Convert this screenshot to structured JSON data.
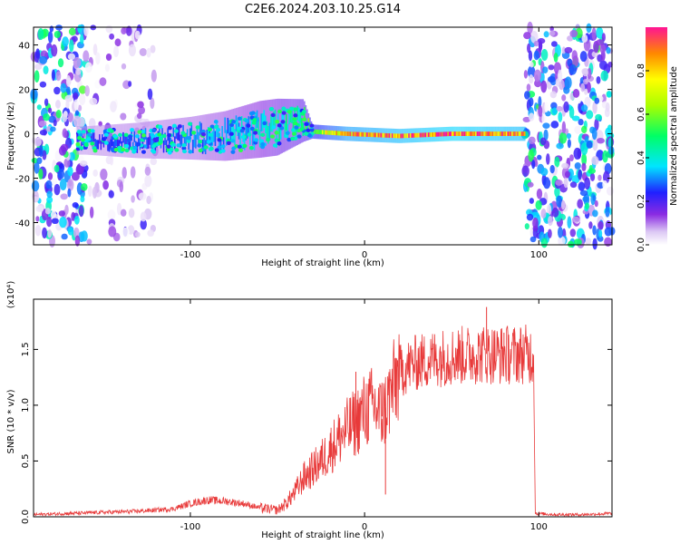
{
  "figure_title": "C2E6.2024.203.10.25.G14",
  "chart_data": [
    {
      "type": "heatmap",
      "title": "C2E6.2024.203.10.25.G14",
      "xlabel": "Height of straight line (km)",
      "ylabel": "Frequency (Hz)",
      "xlim": [
        -190,
        142
      ],
      "ylim": [
        -50,
        48
      ],
      "xticks": [
        -100,
        0,
        100
      ],
      "xtick_labels": [
        "-100",
        "0",
        "100"
      ],
      "yticks": [
        -40,
        -20,
        0,
        20,
        40
      ],
      "ytick_labels": [
        "-40",
        "-20",
        "0",
        "20",
        "40"
      ],
      "colorbar": {
        "label": "Normalized spectral amplitude",
        "range": [
          0,
          1
        ],
        "ticks": [
          0,
          0.2,
          0.4,
          0.6,
          0.8
        ],
        "tick_labels": [
          "0.0",
          "0.2",
          "0.4",
          "0.6",
          "0.8"
        ],
        "colormap": "rainbow"
      },
      "noise_regions": [
        {
          "x": [
            -190,
            -160
          ],
          "level": 0.3
        },
        {
          "x": [
            -160,
            -120
          ],
          "level": 0.12
        },
        {
          "x": [
            92,
            142
          ],
          "level": 0.3
        }
      ],
      "signal_ridge": [
        {
          "x": -160,
          "center": -3,
          "width": 4,
          "amp": 0.25
        },
        {
          "x": -130,
          "center": -3,
          "width": 5,
          "amp": 0.28
        },
        {
          "x": -100,
          "center": -2,
          "width": 6,
          "amp": 0.3
        },
        {
          "x": -80,
          "center": -1,
          "width": 7,
          "amp": 0.35
        },
        {
          "x": -60,
          "center": 2,
          "width": 8,
          "amp": 0.4
        },
        {
          "x": -50,
          "center": 3,
          "width": 8,
          "amp": 0.45
        },
        {
          "x": -35,
          "center": 6,
          "width": 6,
          "amp": 0.5
        },
        {
          "x": -30,
          "center": 1,
          "width": 2,
          "amp": 0.65
        },
        {
          "x": -10,
          "center": 0,
          "width": 2,
          "amp": 0.9
        },
        {
          "x": 20,
          "center": -1,
          "width": 2,
          "amp": 0.95
        },
        {
          "x": 50,
          "center": 0,
          "width": 2,
          "amp": 1.0
        },
        {
          "x": 92,
          "center": 0,
          "width": 2,
          "amp": 0.95
        }
      ]
    },
    {
      "type": "line",
      "xlabel": "Height of straight line (km)",
      "ylabel": "SNR (10 * v/v)",
      "y_multiplier": "(x10⁴)",
      "xlim": [
        -190,
        142
      ],
      "ylim": [
        0,
        1.95
      ],
      "xticks": [
        -100,
        0,
        100
      ],
      "xtick_labels": [
        "-100",
        "0",
        "100"
      ],
      "yticks": [
        0,
        0.5,
        1.0,
        1.5
      ],
      "ytick_labels": [
        "0.0",
        "0.5",
        "1.0",
        "1.5"
      ],
      "series_color": "#e83a3a",
      "series": [
        {
          "x": [
            -190,
            -170,
            -150,
            -130,
            -110,
            -100,
            -90,
            -80,
            -70,
            -60,
            -50,
            -45,
            -40,
            -35,
            -30,
            -25,
            -20,
            -15,
            -10,
            -5,
            0,
            5,
            10,
            15,
            20,
            25,
            30,
            40,
            50,
            60,
            70,
            80,
            90,
            97,
            98,
            110,
            125,
            142
          ],
          "y": [
            0.02,
            0.03,
            0.04,
            0.05,
            0.07,
            0.12,
            0.15,
            0.14,
            0.12,
            0.08,
            0.06,
            0.12,
            0.22,
            0.35,
            0.42,
            0.5,
            0.6,
            0.7,
            0.78,
            0.85,
            0.95,
            1.0,
            0.9,
            1.1,
            1.3,
            1.35,
            1.38,
            1.42,
            1.44,
            1.45,
            1.46,
            1.45,
            1.46,
            1.45,
            0.03,
            0.02,
            0.02,
            0.03
          ]
        }
      ],
      "spikes": [
        {
          "x": 12,
          "y": 0.2
        },
        {
          "x": 70,
          "y": 1.88
        },
        {
          "x": 10,
          "y": 1.2
        },
        {
          "x": -5,
          "y": 1.3
        },
        {
          "x": 80,
          "y": 1.65
        }
      ]
    }
  ]
}
